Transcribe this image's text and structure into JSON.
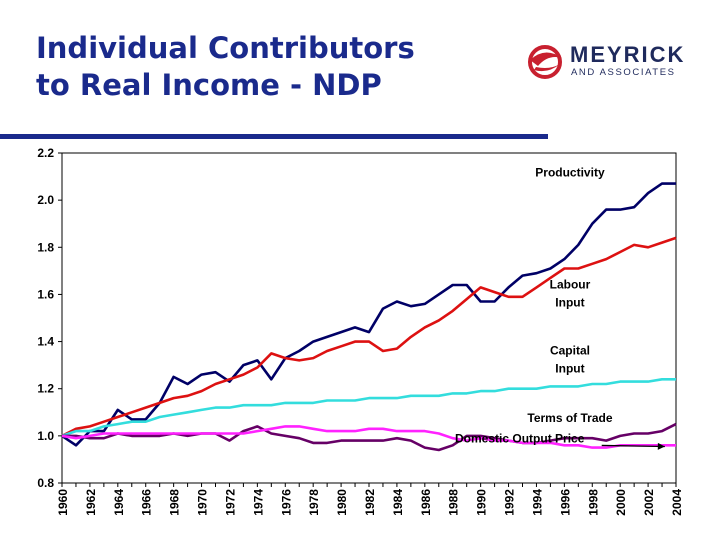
{
  "header": {
    "title_line1": "Individual Contributors",
    "title_line2": "to Real Income - NDP",
    "logo": {
      "name": "MEYRICK",
      "subtitle": "AND ASSOCIATES",
      "icon": "globe-swoosh-icon",
      "color": "#c8202f"
    }
  },
  "colors": {
    "title": "#1a2a8c",
    "rule": "#1a2a8c"
  },
  "chart_data": {
    "type": "line",
    "title": "",
    "xlabel": "",
    "ylabel": "",
    "ylim": [
      0.8,
      2.2
    ],
    "yticks": [
      "0.8",
      "1.0",
      "1.2",
      "1.4",
      "1.6",
      "1.8",
      "2.0",
      "2.2"
    ],
    "xticks": [
      "1960",
      "1962",
      "1964",
      "1966",
      "1968",
      "1970",
      "1972",
      "1974",
      "1976",
      "1978",
      "1980",
      "1982",
      "1984",
      "1986",
      "1988",
      "1990",
      "1992",
      "1994",
      "1996",
      "1998",
      "2000",
      "2002",
      "2004"
    ],
    "x": [
      1960,
      1961,
      1962,
      1963,
      1964,
      1965,
      1966,
      1967,
      1968,
      1969,
      1970,
      1971,
      1972,
      1973,
      1974,
      1975,
      1976,
      1977,
      1978,
      1979,
      1980,
      1981,
      1982,
      1983,
      1984,
      1985,
      1986,
      1987,
      1988,
      1989,
      1990,
      1991,
      1992,
      1993,
      1994,
      1995,
      1996,
      1997,
      1998,
      1999,
      2000,
      2001,
      2002,
      2003,
      2004
    ],
    "grid": false,
    "series": [
      {
        "name": "Productivity",
        "color": "#000066",
        "values": [
          1.0,
          0.96,
          1.02,
          1.02,
          1.11,
          1.07,
          1.07,
          1.14,
          1.25,
          1.22,
          1.26,
          1.27,
          1.23,
          1.3,
          1.32,
          1.24,
          1.33,
          1.36,
          1.4,
          1.42,
          1.44,
          1.46,
          1.44,
          1.54,
          1.57,
          1.55,
          1.56,
          1.6,
          1.64,
          1.64,
          1.57,
          1.57,
          1.63,
          1.68,
          1.69,
          1.71,
          1.75,
          1.81,
          1.9,
          1.96,
          1.96,
          1.97,
          2.03,
          2.07,
          2.07
        ]
      },
      {
        "name": "Labour Input",
        "color": "#dd1111",
        "values": [
          1.0,
          1.03,
          1.04,
          1.06,
          1.08,
          1.1,
          1.12,
          1.14,
          1.16,
          1.17,
          1.19,
          1.22,
          1.24,
          1.26,
          1.29,
          1.35,
          1.33,
          1.32,
          1.33,
          1.36,
          1.38,
          1.4,
          1.4,
          1.36,
          1.37,
          1.42,
          1.46,
          1.49,
          1.53,
          1.58,
          1.63,
          1.61,
          1.59,
          1.59,
          1.63,
          1.67,
          1.71,
          1.71,
          1.73,
          1.75,
          1.78,
          1.81,
          1.8,
          1.82,
          1.84
        ]
      },
      {
        "name": "Capital Input",
        "color": "#33dddd",
        "values": [
          1.0,
          1.02,
          1.02,
          1.04,
          1.05,
          1.06,
          1.06,
          1.08,
          1.09,
          1.1,
          1.11,
          1.12,
          1.12,
          1.13,
          1.13,
          1.13,
          1.14,
          1.14,
          1.14,
          1.15,
          1.15,
          1.15,
          1.16,
          1.16,
          1.16,
          1.17,
          1.17,
          1.17,
          1.18,
          1.18,
          1.19,
          1.19,
          1.2,
          1.2,
          1.2,
          1.21,
          1.21,
          1.21,
          1.22,
          1.22,
          1.23,
          1.23,
          1.23,
          1.24,
          1.24
        ]
      },
      {
        "name": "Terms of Trade",
        "color": "#660066",
        "values": [
          1.0,
          1.0,
          0.99,
          0.99,
          1.01,
          1.0,
          1.0,
          1.0,
          1.01,
          1.0,
          1.01,
          1.01,
          0.98,
          1.02,
          1.04,
          1.01,
          1.0,
          0.99,
          0.97,
          0.97,
          0.98,
          0.98,
          0.98,
          0.98,
          0.99,
          0.98,
          0.95,
          0.94,
          0.96,
          1.0,
          1.0,
          0.99,
          0.98,
          0.97,
          0.97,
          0.98,
          0.99,
          0.99,
          0.99,
          0.98,
          1.0,
          1.01,
          1.01,
          1.02,
          1.05
        ]
      },
      {
        "name": "Domestic Output Price",
        "color": "#ff22ff",
        "values": [
          1.0,
          0.99,
          1.0,
          1.01,
          1.01,
          1.01,
          1.01,
          1.01,
          1.01,
          1.01,
          1.01,
          1.01,
          1.01,
          1.01,
          1.02,
          1.03,
          1.04,
          1.04,
          1.03,
          1.02,
          1.02,
          1.02,
          1.03,
          1.03,
          1.02,
          1.02,
          1.02,
          1.01,
          0.99,
          0.98,
          0.99,
          0.98,
          0.98,
          0.97,
          0.97,
          0.97,
          0.96,
          0.96,
          0.95,
          0.95,
          0.96,
          0.96,
          0.96,
          0.96,
          0.96
        ]
      }
    ],
    "annotations": [
      {
        "lines": [
          "Productivity"
        ],
        "series": "Productivity",
        "x": 1996.4,
        "y": 2.1
      },
      {
        "lines": [
          "Labour",
          "Input"
        ],
        "series": "Labour Input",
        "x": 1996.4,
        "y": 1.625
      },
      {
        "lines": [
          "Capital",
          "Input"
        ],
        "series": "Capital Input",
        "x": 1996.4,
        "y": 1.346
      },
      {
        "lines": [
          "Terms of Trade"
        ],
        "series": "Terms of Trade",
        "x": 1996.4,
        "y": 1.058
      },
      {
        "lines": [
          "Domestic Output Price"
        ],
        "series": "Domestic Output Price",
        "x": 1992.8,
        "y": 0.972,
        "arrow_to": [
          2003.2,
          0.955
        ]
      }
    ]
  }
}
